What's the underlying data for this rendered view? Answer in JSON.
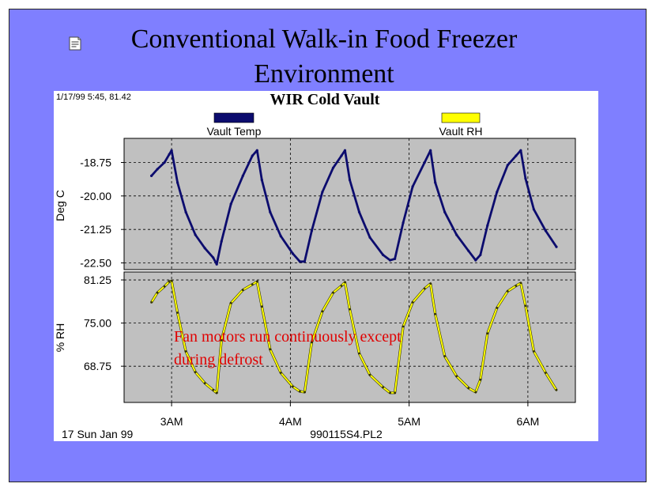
{
  "slide": {
    "title_line1": "Conventional Walk-in Food Freezer",
    "title_line2": "Environment",
    "icon": "notes-icon"
  },
  "chart_data": {
    "type": "line",
    "title": "WIR Cold Vault",
    "corner_readout": "1/17/99 5:45, 81.42",
    "footer_left": "17 Sun Jan 99",
    "footer_center": "990115S4.PL2",
    "annotation_line1": "Fan motors run continuously except",
    "annotation_line2": "during defrost",
    "x_tick_labels": [
      "3AM",
      "4AM",
      "5AM",
      "6AM"
    ],
    "x_ticks_hours": [
      3,
      4,
      5,
      6
    ],
    "xlim_hours": [
      2.6,
      6.4
    ],
    "legend": [
      {
        "name": "Vault Temp",
        "color": "#0c0c6e"
      },
      {
        "name": "Vault RH",
        "color": "#ffff00"
      }
    ],
    "grid": true,
    "panels": [
      {
        "series": "Vault Temp",
        "ylabel": "Deg C",
        "ylim": [
          -22.75,
          -17.85
        ],
        "y_ticks": [
          -18.75,
          -20.0,
          -21.25,
          -22.5
        ],
        "y_tick_labels": [
          "-18.75",
          "-20.00",
          "-21.25",
          "-22.50"
        ],
        "color": "#0c0c6e",
        "x": [
          2.83,
          2.88,
          2.94,
          2.98,
          3.0,
          3.05,
          3.12,
          3.2,
          3.28,
          3.35,
          3.38,
          3.42,
          3.5,
          3.6,
          3.68,
          3.72,
          3.76,
          3.83,
          3.92,
          4.02,
          4.08,
          4.12,
          4.18,
          4.27,
          4.36,
          4.43,
          4.46,
          4.5,
          4.58,
          4.67,
          4.78,
          4.84,
          4.88,
          4.95,
          5.03,
          5.13,
          5.18,
          5.22,
          5.3,
          5.4,
          5.5,
          5.56,
          5.6,
          5.66,
          5.74,
          5.83,
          5.9,
          5.94,
          5.98,
          6.05,
          6.15,
          6.24
        ],
        "values": [
          -19.25,
          -19.0,
          -18.75,
          -18.45,
          -18.3,
          -19.5,
          -20.6,
          -21.45,
          -21.95,
          -22.3,
          -22.55,
          -21.7,
          -20.3,
          -19.25,
          -18.5,
          -18.3,
          -19.4,
          -20.6,
          -21.5,
          -22.15,
          -22.45,
          -22.45,
          -21.3,
          -19.85,
          -18.95,
          -18.5,
          -18.3,
          -19.4,
          -20.6,
          -21.55,
          -22.2,
          -22.4,
          -22.35,
          -21.0,
          -19.65,
          -18.75,
          -18.3,
          -19.5,
          -20.6,
          -21.45,
          -22.05,
          -22.4,
          -22.2,
          -21.1,
          -19.85,
          -18.85,
          -18.5,
          -18.3,
          -19.35,
          -20.5,
          -21.3,
          -21.9
        ]
      },
      {
        "series": "Vault RH",
        "ylabel": "% RH",
        "ylim": [
          63.5,
          82.4
        ],
        "y_ticks": [
          81.25,
          75.0,
          68.75
        ],
        "y_tick_labels": [
          "81.25",
          "75.00",
          "68.75"
        ],
        "color": "#ffff00",
        "x": [
          2.83,
          2.88,
          2.94,
          2.98,
          3.0,
          3.05,
          3.12,
          3.2,
          3.28,
          3.35,
          3.38,
          3.42,
          3.5,
          3.6,
          3.68,
          3.72,
          3.76,
          3.83,
          3.92,
          4.02,
          4.08,
          4.12,
          4.18,
          4.27,
          4.36,
          4.43,
          4.46,
          4.5,
          4.58,
          4.67,
          4.78,
          4.84,
          4.88,
          4.95,
          5.03,
          5.13,
          5.18,
          5.22,
          5.3,
          5.4,
          5.5,
          5.56,
          5.6,
          5.66,
          5.74,
          5.83,
          5.9,
          5.94,
          5.98,
          6.05,
          6.15,
          6.24
        ],
        "values": [
          78.0,
          79.4,
          80.3,
          81.0,
          81.1,
          76.5,
          70.9,
          67.9,
          66.3,
          65.3,
          64.9,
          72.5,
          77.9,
          79.8,
          80.6,
          81.0,
          77.4,
          71.2,
          67.8,
          65.8,
          65.1,
          65.0,
          72.2,
          76.7,
          79.4,
          80.4,
          80.9,
          77.0,
          70.6,
          67.5,
          65.7,
          64.9,
          64.9,
          74.5,
          78.0,
          80.0,
          80.7,
          76.3,
          70.2,
          67.3,
          65.6,
          65.0,
          66.8,
          73.5,
          77.2,
          79.6,
          80.4,
          80.8,
          77.5,
          70.9,
          67.8,
          65.3
        ]
      }
    ]
  }
}
